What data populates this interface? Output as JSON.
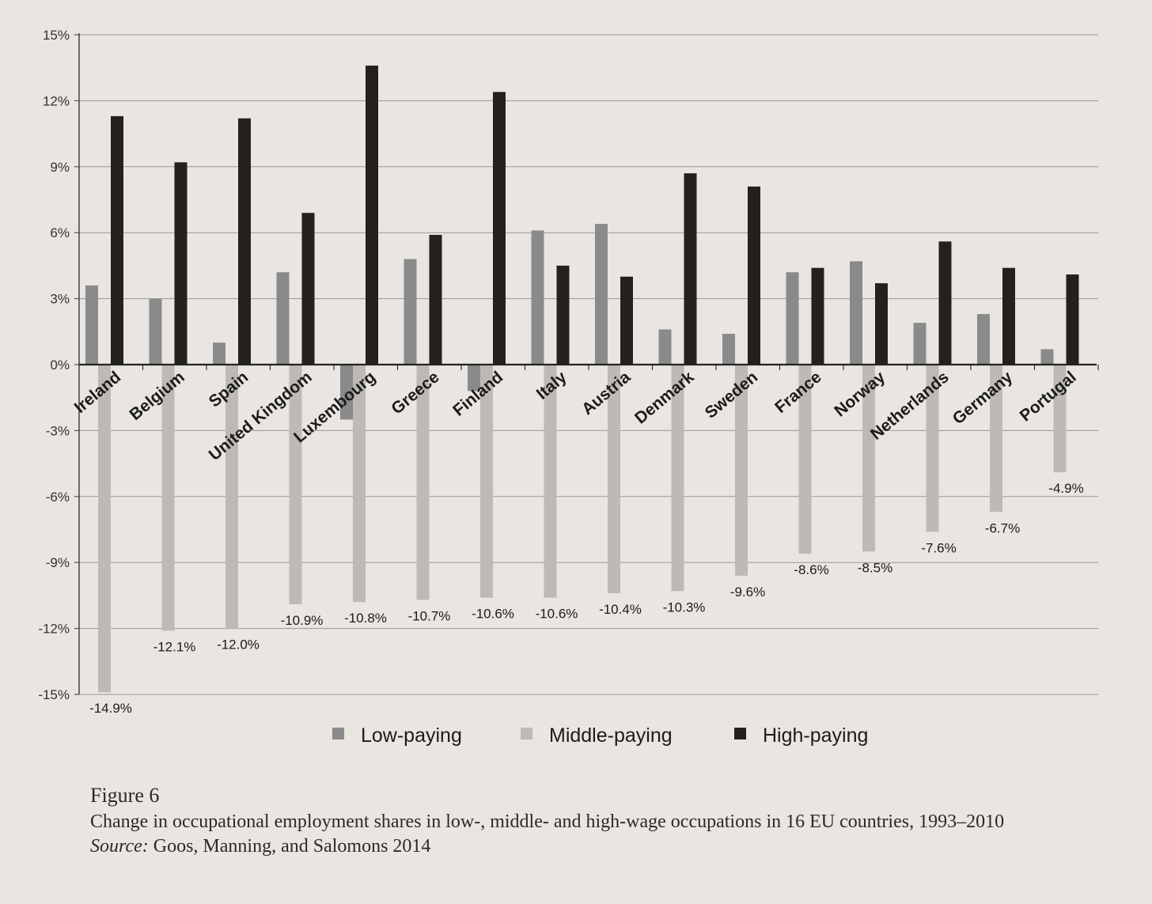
{
  "chart_data": {
    "type": "bar",
    "categories": [
      "Ireland",
      "Belgium",
      "Spain",
      "United Kingdom",
      "Luxembourg",
      "Greece",
      "Finland",
      "Italy",
      "Austria",
      "Denmark",
      "Sweden",
      "France",
      "Norway",
      "Netherlands",
      "Germany",
      "Portugal"
    ],
    "series": [
      {
        "name": "Low-paying",
        "color": "#8a8a8a",
        "values": [
          3.6,
          3.0,
          1.0,
          4.2,
          -2.5,
          4.8,
          -1.2,
          6.1,
          6.4,
          1.6,
          1.4,
          4.2,
          4.7,
          1.9,
          2.3,
          0.7
        ]
      },
      {
        "name": "Middle-paying",
        "color": "#bdb9b5",
        "values": [
          -14.9,
          -12.1,
          -12.0,
          -10.9,
          -10.8,
          -10.7,
          -10.6,
          -10.6,
          -10.4,
          -10.3,
          -9.6,
          -8.6,
          -8.5,
          -7.6,
          -6.7,
          -4.9
        ]
      },
      {
        "name": "High-paying",
        "color": "#232120",
        "values": [
          11.3,
          9.2,
          11.2,
          6.9,
          13.6,
          5.9,
          12.4,
          4.5,
          4.0,
          8.7,
          8.1,
          4.4,
          3.7,
          5.6,
          4.4,
          4.1
        ]
      }
    ],
    "data_labels": [
      "-14.9%",
      "-12.1%",
      "-12.0%",
      "-10.9%",
      "-10.8%",
      "-10.7%",
      "-10.6%",
      "-10.6%",
      "-10.4%",
      "-10.3%",
      "-9.6%",
      "-8.6%",
      "-8.5%",
      "-7.6%",
      "-6.7%",
      "-4.9%"
    ],
    "yticks": [
      "15%",
      "12%",
      "9%",
      "6%",
      "3%",
      "0%",
      "-3%",
      "-6%",
      "-9%",
      "-12%",
      "-15%"
    ],
    "ylim": [
      -15,
      15
    ],
    "grid": true,
    "legend_position": "bottom"
  },
  "caption": {
    "title": "Figure 6",
    "description": "Change in occupational employment shares in low-, middle- and high-wage occupations in 16 EU countries, 1993–2010",
    "source_label": "Source:",
    "source_text": " Goos, Manning, and Salomons 2014"
  }
}
